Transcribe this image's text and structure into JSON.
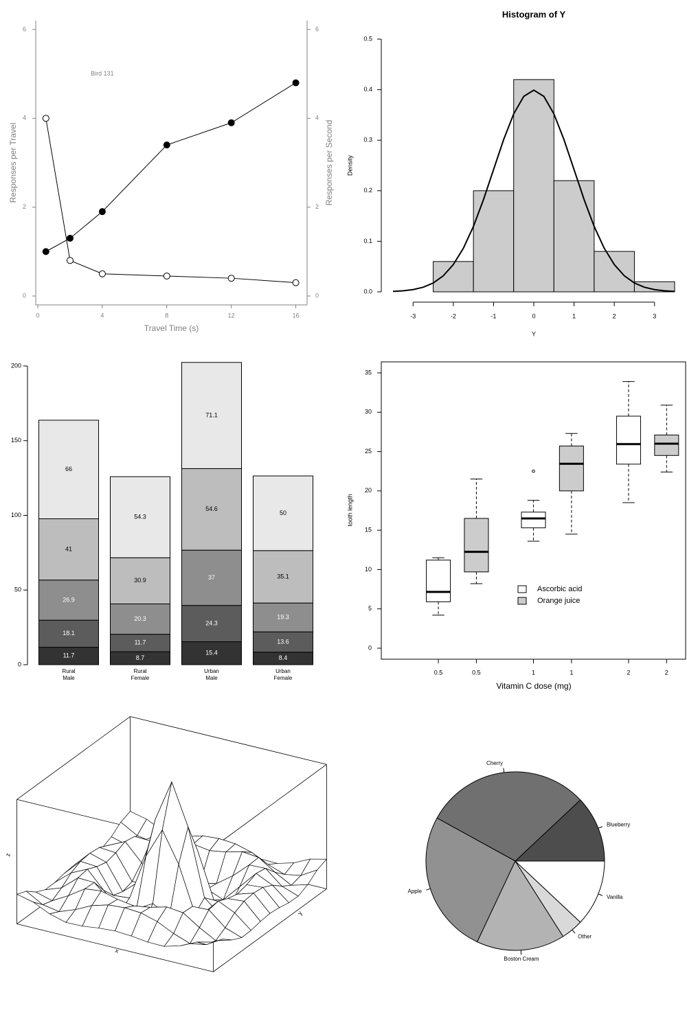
{
  "chart_data": [
    {
      "type": "line",
      "annotations": [
        {
          "text": "Bird 131",
          "x": 4,
          "y": 5
        }
      ],
      "xlabel": "Travel Time (s)",
      "ylabel": "Responses per Travel",
      "y2label": "Responses per Second",
      "x": [
        0.5,
        2,
        4,
        8,
        12,
        16
      ],
      "series": [
        {
          "color": "#000000",
          "marker": "filled",
          "values": [
            1.0,
            1.3,
            1.9,
            3.4,
            3.9,
            4.8
          ]
        },
        {
          "color": "#000000",
          "marker": "open",
          "axis": "y2",
          "values": [
            4.0,
            0.8,
            0.5,
            0.45,
            0.4,
            0.3
          ]
        }
      ],
      "xlim": [
        -0.13,
        16.7
      ],
      "ylim": [
        -0.2,
        6.2
      ],
      "y2lim": [
        -0.2,
        6.2
      ],
      "xticks": [
        0,
        4,
        8,
        12,
        16
      ],
      "yticks": [
        0,
        2,
        4,
        6
      ],
      "y2ticks": [
        0,
        2,
        4,
        6
      ]
    },
    {
      "type": "histogram",
      "title": "Histogram of Y",
      "xlabel": "Y",
      "ylabel": "Density",
      "bins": [
        -2.5,
        -1.5,
        -0.5,
        0.5,
        1.5,
        2.5,
        3.5
      ],
      "values": [
        0.06,
        0.2,
        0.42,
        0.22,
        0.08,
        0.02
      ],
      "color": "#cccccc",
      "curve": {
        "x": [
          -3.5,
          -3.25,
          -3,
          -2.75,
          -2.5,
          -2.25,
          -2,
          -1.75,
          -1.5,
          -1.25,
          -1,
          -0.75,
          -0.5,
          -0.25,
          0,
          0.25,
          0.5,
          0.75,
          1,
          1.25,
          1.5,
          1.75,
          2,
          2.25,
          2.5,
          2.75,
          3,
          3.25,
          3.5
        ],
        "values": [
          0.0009,
          0.002,
          0.0044,
          0.0091,
          0.0175,
          0.0317,
          0.054,
          0.0863,
          0.1295,
          0.1826,
          0.242,
          0.3011,
          0.352,
          0.3867,
          0.399,
          0.3867,
          0.352,
          0.3011,
          0.242,
          0.1826,
          0.1295,
          0.0863,
          0.054,
          0.0317,
          0.0175,
          0.0091,
          0.0044,
          0.002,
          0.0009
        ]
      },
      "xlim": [
        -3.5,
        3.5
      ],
      "ylim": [
        0,
        0.5
      ],
      "xticks": [
        -3,
        -2,
        -1,
        0,
        1,
        2,
        3
      ],
      "yticks": [
        {
          "value": 0,
          "label": "0.0"
        },
        0.1,
        0.2,
        0.3,
        0.4,
        0.5
      ]
    },
    {
      "type": "stacked_bar",
      "categories": [
        [
          "Rural",
          "Male"
        ],
        [
          "Rural",
          "Female"
        ],
        [
          "Urban",
          "Male"
        ],
        [
          "Urban",
          "Female"
        ]
      ],
      "series": [
        {
          "color": "#333333",
          "label_color": "#ffffff",
          "values": [
            11.7,
            8.7,
            15.4,
            8.4
          ]
        },
        {
          "color": "#5c5c5c",
          "label_color": "#ffffff",
          "values": [
            18.1,
            11.7,
            24.3,
            13.6
          ]
        },
        {
          "color": "#8e8e8e",
          "label_color": "#ffffff",
          "values": [
            26.9,
            20.3,
            37,
            19.3
          ]
        },
        {
          "color": "#bdbdbd",
          "label_color": "#000000",
          "values": [
            41,
            30.9,
            54.6,
            35.1
          ]
        },
        {
          "color": "#e8e8e8",
          "label_color": "#000000",
          "values": [
            66,
            54.3,
            71.1,
            50
          ]
        }
      ],
      "ylim": [
        0,
        200
      ],
      "yticks": [
        0,
        50,
        100,
        150,
        200
      ]
    },
    {
      "type": "box",
      "xlabel": "Vitamin C dose (mg)",
      "ylabel": "tooth length",
      "series": [
        {
          "name": "Ascorbic acid",
          "color": "#ffffff",
          "x": [
            0.8,
            1.8,
            2.8
          ],
          "low": [
            4.2,
            13.6,
            18.5
          ],
          "q1": [
            5.9,
            15.3,
            23.4
          ],
          "median": [
            7.15,
            16.5,
            25.95
          ],
          "q3": [
            11.2,
            17.3,
            29.5
          ],
          "high": [
            11.5,
            18.8,
            33.9
          ],
          "outliers": [
            {
              "x": 1.8,
              "y": 22.5
            }
          ]
        },
        {
          "name": "Orange juice",
          "color": "#cccccc",
          "x": [
            1.2,
            2.2,
            3.2
          ],
          "low": [
            8.2,
            14.5,
            22.4
          ],
          "q1": [
            9.7,
            20.0,
            24.5
          ],
          "median": [
            12.25,
            23.45,
            26.0
          ],
          "q3": [
            16.5,
            25.7,
            27.1
          ],
          "high": [
            21.5,
            27.3,
            30.9
          ]
        }
      ],
      "xlim": [
        0.2,
        3.4
      ],
      "ylim": [
        -1.4,
        36.4
      ],
      "xticks": [
        {
          "value": 0.8,
          "label": "0.5"
        },
        {
          "value": 1.2,
          "label": "0.5"
        },
        {
          "value": 1.8,
          "label": "1"
        },
        {
          "value": 2.2,
          "label": "1"
        },
        {
          "value": 2.8,
          "label": "2"
        },
        {
          "value": 3.2,
          "label": "2"
        }
      ],
      "yticks": [
        0,
        5,
        10,
        15,
        20,
        25,
        30,
        35
      ]
    },
    {
      "type": "surface",
      "xlabel": "x",
      "ylabel": "y",
      "zlabel": "z",
      "x": [
        -10,
        -8.333,
        -6.667,
        -5,
        -3.333,
        -1.667,
        0,
        1.667,
        3.333,
        5,
        6.667,
        8.333,
        10
      ],
      "y": [
        -10,
        -8.333,
        -6.667,
        -5,
        -3.333,
        -1.667,
        0,
        1.667,
        3.333,
        5,
        6.667,
        8.333,
        10
      ],
      "z": [
        [
          0.071,
          0.033,
          -0.043,
          -0.088,
          -0.085,
          -0.065,
          -0.054,
          -0.065,
          -0.085,
          -0.088,
          -0.043,
          0.033,
          0.071
        ],
        [
          0.033,
          -0.06,
          -0.089,
          -0.03,
          0.048,
          0.094,
          0.106,
          0.094,
          0.048,
          -0.03,
          -0.089,
          -0.06,
          0.033
        ],
        [
          -0.043,
          -0.089,
          0,
          0.106,
          0.124,
          0.081,
          0.056,
          0.081,
          0.124,
          0.106,
          0,
          -0.089,
          -0.043
        ],
        [
          -0.088,
          -0.03,
          0.106,
          0.1,
          -0.045,
          -0.161,
          -0.192,
          -0.161,
          -0.045,
          0.1,
          0.106,
          -0.03,
          -0.088
        ],
        [
          -0.085,
          0.048,
          0.124,
          -0.045,
          -0.212,
          -0.148,
          -0.057,
          -0.148,
          -0.212,
          -0.045,
          0.124,
          0.048,
          -0.085
        ],
        [
          -0.065,
          0.094,
          0.081,
          -0.161,
          -0.148,
          0.3,
          0.597,
          0.3,
          -0.148,
          -0.161,
          0.081,
          0.094,
          -0.065
        ],
        [
          -0.054,
          0.106,
          0.056,
          -0.192,
          -0.057,
          0.597,
          1,
          0.597,
          -0.057,
          -0.192,
          0.056,
          0.106,
          -0.054
        ],
        [
          -0.065,
          0.094,
          0.081,
          -0.161,
          -0.148,
          0.3,
          0.597,
          0.3,
          -0.148,
          -0.161,
          0.081,
          0.094,
          -0.065
        ],
        [
          -0.085,
          0.048,
          0.124,
          -0.045,
          -0.212,
          -0.148,
          -0.057,
          -0.148,
          -0.212,
          -0.045,
          0.124,
          0.048,
          -0.085
        ],
        [
          -0.088,
          -0.03,
          0.106,
          0.1,
          -0.045,
          -0.161,
          -0.192,
          -0.161,
          -0.045,
          0.1,
          0.106,
          -0.03,
          -0.088
        ],
        [
          -0.043,
          -0.089,
          0,
          0.106,
          0.124,
          0.081,
          0.056,
          0.081,
          0.124,
          0.106,
          0,
          -0.089,
          -0.043
        ],
        [
          0.033,
          -0.06,
          -0.089,
          -0.03,
          0.048,
          0.094,
          0.106,
          0.094,
          0.048,
          -0.03,
          -0.089,
          -0.06,
          0.033
        ],
        [
          0.071,
          0.033,
          -0.043,
          -0.088,
          -0.085,
          -0.065,
          -0.054,
          -0.065,
          -0.085,
          -0.088,
          -0.043,
          0.033,
          0.071
        ]
      ],
      "xlim": [
        -10,
        10
      ],
      "ylim": [
        -10,
        10
      ],
      "zlim": [
        -0.22,
        1
      ]
    },
    {
      "type": "pie",
      "categories": [
        "Blueberry",
        "Cherry",
        "Apple",
        "Boston Cream",
        "Other",
        "Vanilla"
      ],
      "values": [
        0.12,
        0.3,
        0.26,
        0.16,
        0.04,
        0.12
      ],
      "colors": [
        "#4d4d4d",
        "#707070",
        "#919191",
        "#b3b3b3",
        "#d9d9d9",
        "#ffffff"
      ]
    }
  ]
}
